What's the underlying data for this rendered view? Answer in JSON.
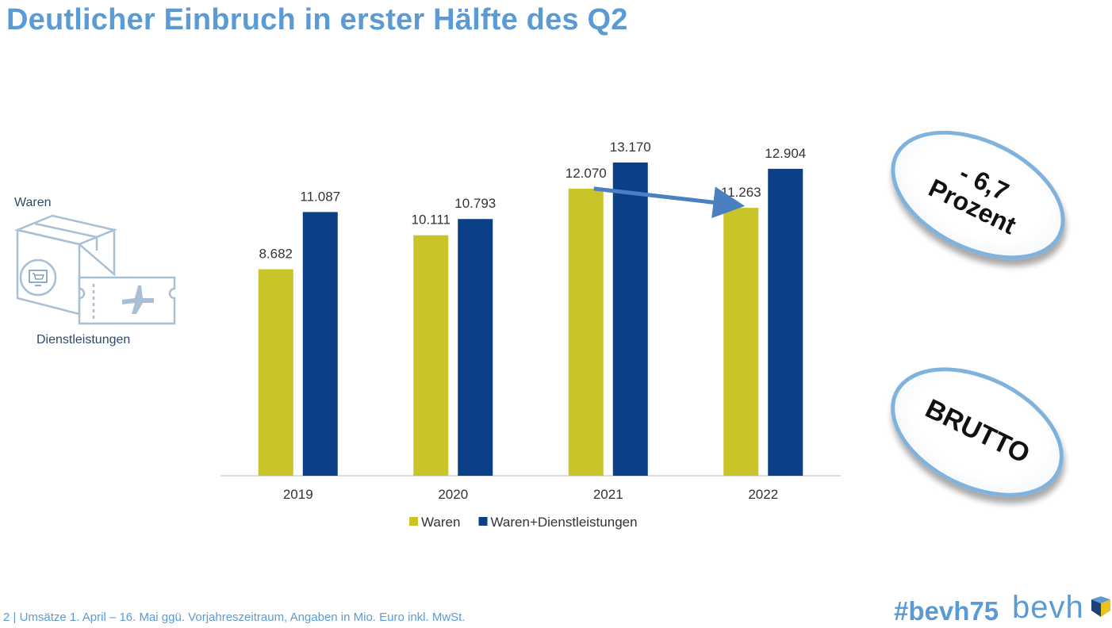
{
  "slide": {
    "title": "Deutlicher Einbruch in erster Hälfte des Q2",
    "footer": "2 |  Umsätze 1. April – 16. Mai ggü. Vorjahreszeitraum, Angaben in Mio. Euro inkl. MwSt.",
    "hashtag": "#bevh75",
    "logo_text": "bevh"
  },
  "side_labels": {
    "waren": "Waren",
    "dienstleistungen": "Dienstleistungen"
  },
  "badges": {
    "percent_line1": "- 6,7",
    "percent_line2": "Prozent",
    "brutto": "BRUTTO"
  },
  "icons": [
    "package-box-icon",
    "shopping-cart-screen-icon",
    "airplane-ticket-icon",
    "arrow-icon",
    "bevh-logo-icon"
  ],
  "chart_data": {
    "type": "bar",
    "categories": [
      "2019",
      "2020",
      "2021",
      "2022"
    ],
    "series": [
      {
        "name": "Waren",
        "values": [
          8682,
          10111,
          12070,
          11263
        ],
        "labels": [
          "8.682",
          "10.111",
          "12.070",
          "11.263"
        ],
        "color": "#c8c42a"
      },
      {
        "name": "Waren+Dienstleistungen",
        "values": [
          11087,
          10793,
          13170,
          12904
        ],
        "labels": [
          "11.087",
          "10.793",
          "13.170",
          "12.904"
        ],
        "color": "#0b3f87"
      }
    ],
    "ylim": [
      0,
      14000
    ],
    "grid": false,
    "legend": "bottom",
    "annotation_arrow": {
      "from": "2021 Waren",
      "to": "2022 Waren",
      "color": "#4a7fc1"
    }
  },
  "colors": {
    "accent": "#5b9bd5",
    "waren": "#c8c42a",
    "waren_dienst": "#0b3f87",
    "badge_border": "#7fb2dc"
  }
}
